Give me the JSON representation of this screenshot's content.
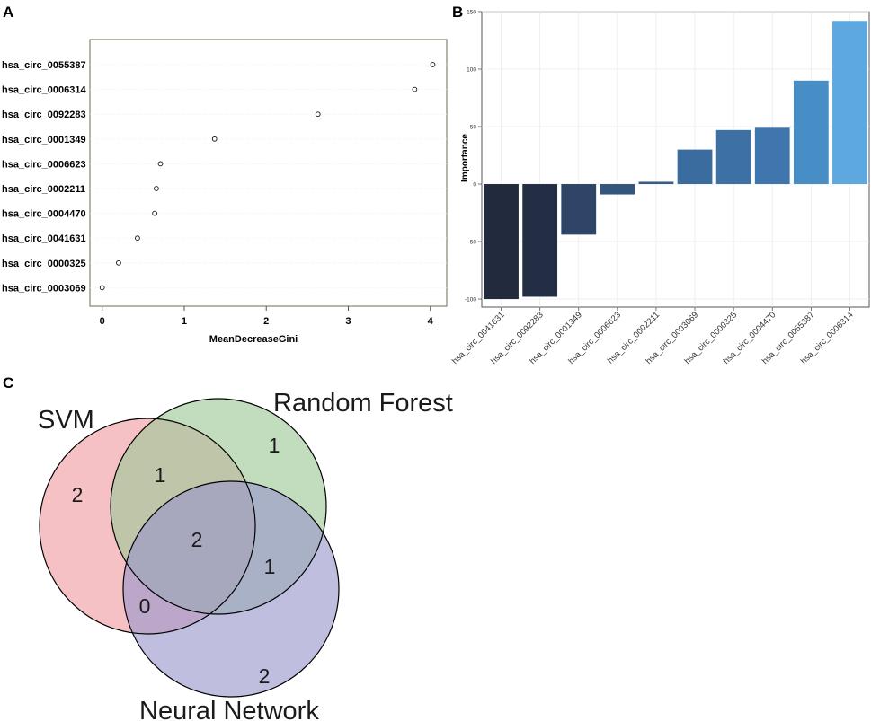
{
  "panels": {
    "a": "A",
    "b": "B",
    "c": "C"
  },
  "chart_data": [
    {
      "type": "scatter",
      "panel": "A",
      "xlabel": "MeanDecreaseGini",
      "xlim": [
        -0.15,
        4.2
      ],
      "xticks": [
        0,
        1,
        2,
        3,
        4
      ],
      "categories": [
        "hsa_circ_0055387",
        "hsa_circ_0006314",
        "hsa_circ_0092283",
        "hsa_circ_0001349",
        "hsa_circ_0006623",
        "hsa_circ_0002211",
        "hsa_circ_0004470",
        "hsa_circ_0041631",
        "hsa_circ_0000325",
        "hsa_circ_0003069"
      ],
      "values": [
        4.03,
        3.81,
        2.63,
        1.37,
        0.71,
        0.66,
        0.64,
        0.43,
        0.2,
        0.0
      ]
    },
    {
      "type": "bar",
      "panel": "B",
      "ylabel": "Importance",
      "ylim": [
        -107,
        150
      ],
      "yticks": [
        -100,
        -50,
        0,
        50,
        100,
        150
      ],
      "categories": [
        "hsa_circ_0041631",
        "hsa_circ_0092283",
        "hsa_circ_0001349",
        "hsa_circ_0006623",
        "hsa_circ_0002211",
        "hsa_circ_0003069",
        "hsa_circ_0000325",
        "hsa_circ_0004470",
        "hsa_circ_0055387",
        "hsa_circ_0006314"
      ],
      "values": [
        -100,
        -98,
        -44,
        -9,
        2,
        30,
        47,
        49,
        90,
        142
      ],
      "colors": [
        "#222a3d",
        "#232d44",
        "#2e4567",
        "#34557e",
        "#375e8a",
        "#3b6c9f",
        "#3d71a6",
        "#3f76ad",
        "#478dc6",
        "#5da8df"
      ]
    },
    {
      "type": "venn",
      "panel": "C",
      "sets": [
        "SVM",
        "Random Forest",
        "Neural Network"
      ],
      "colors": {
        "svm": "#f19b9f",
        "rf": "#9cc896",
        "nn": "#9796cc"
      },
      "regions": {
        "svm_only": "2",
        "rf_only": "1",
        "nn_only": "2",
        "svm_rf": "1",
        "rf_nn": "1",
        "svm_nn": "0",
        "all_three": "2"
      }
    }
  ]
}
